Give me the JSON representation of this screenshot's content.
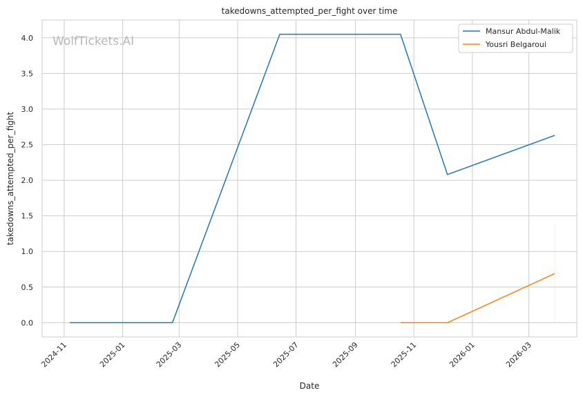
{
  "chart_data": {
    "type": "line",
    "title": "takedowns_attempted_per_fight over time",
    "xlabel": "Date",
    "ylabel": "takedowns_attempted_per_fight",
    "watermark": "WolfTickets.AI",
    "xlim": [
      "2024-10-09",
      "2026-04-20"
    ],
    "ylim": [
      -0.2,
      4.25
    ],
    "x_ticks": [
      "2024-11",
      "2025-01",
      "2025-03",
      "2025-05",
      "2025-07",
      "2025-09",
      "2025-11",
      "2026-01",
      "2026-03"
    ],
    "y_ticks": [
      0.0,
      0.5,
      1.0,
      1.5,
      2.0,
      2.5,
      3.0,
      3.5,
      4.0
    ],
    "y_tick_labels": [
      "0.0",
      "0.5",
      "1.0",
      "1.5",
      "2.0",
      "2.5",
      "3.0",
      "3.5",
      "4.0"
    ],
    "grid": true,
    "legend_position": "top-right",
    "series": [
      {
        "name": "Mansur Abdul-Malik",
        "color": "#1f77b4",
        "x": [
          "2024-11-07",
          "2025-02-22",
          "2025-06-14",
          "2025-10-18",
          "2025-12-06",
          "2026-03-28"
        ],
        "y": [
          0.0,
          0.0,
          4.05,
          4.05,
          2.08,
          2.63
        ]
      },
      {
        "name": "Yousri Belgaroui",
        "color": "#ff7f0e",
        "x": [
          "2025-10-18",
          "2025-12-06",
          "2026-03-28"
        ],
        "y": [
          0.0,
          0.0,
          0.69
        ]
      }
    ]
  }
}
